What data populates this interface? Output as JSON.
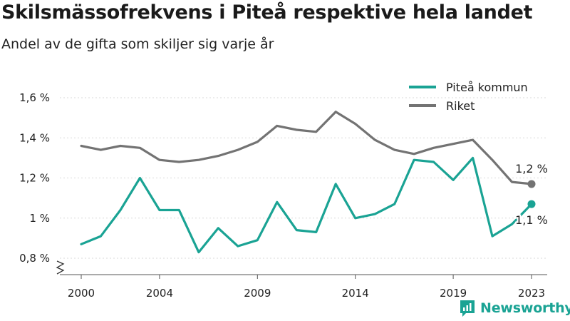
{
  "title": "Skilsmässofrekvens i Piteå respektive hela landet",
  "subtitle": "Andel av de gifta som skiljer sig varje år",
  "brand": {
    "name": "Newsworthy",
    "icon": "newsworthy-logo-icon"
  },
  "colors": {
    "pitea": "#1aa394",
    "riket": "#737373"
  },
  "chart_data": {
    "type": "line",
    "x": [
      2000,
      2001,
      2002,
      2003,
      2004,
      2005,
      2006,
      2007,
      2008,
      2009,
      2010,
      2011,
      2012,
      2013,
      2014,
      2015,
      2016,
      2017,
      2018,
      2019,
      2020,
      2021,
      2022,
      2023
    ],
    "series": [
      {
        "name": "Piteå kommun",
        "values": [
          0.87,
          0.91,
          1.04,
          1.2,
          1.04,
          1.04,
          0.83,
          0.95,
          0.86,
          0.89,
          1.08,
          0.94,
          0.93,
          1.17,
          1.0,
          1.02,
          1.07,
          1.29,
          1.28,
          1.19,
          1.3,
          0.91,
          0.97,
          1.07
        ],
        "end_label": "1,1 %"
      },
      {
        "name": "Riket",
        "values": [
          1.36,
          1.34,
          1.36,
          1.35,
          1.29,
          1.28,
          1.29,
          1.31,
          1.34,
          1.38,
          1.46,
          1.44,
          1.43,
          1.53,
          1.47,
          1.39,
          1.34,
          1.32,
          1.35,
          1.37,
          1.39,
          1.29,
          1.18,
          1.17
        ],
        "end_label": "1,2 %"
      }
    ],
    "ylim": [
      0.8,
      1.6
    ],
    "y_ticks": [
      0.8,
      1.0,
      1.2,
      1.4,
      1.6
    ],
    "y_tick_labels": [
      "0,8 %",
      "1 %",
      "1,2 %",
      "1,4 %",
      "1,6 %"
    ],
    "x_ticks": [
      2000,
      2004,
      2009,
      2014,
      2019,
      2023
    ],
    "x_tick_labels": [
      "2000",
      "2004",
      "2009",
      "2014",
      "2019",
      "2023"
    ],
    "grid": true,
    "legend_position": "top-right",
    "axis_break": true
  }
}
